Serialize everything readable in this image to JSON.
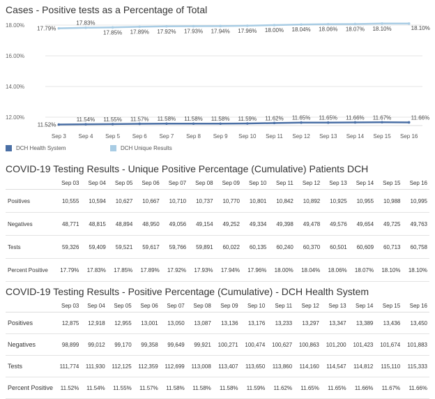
{
  "chart_title": "Cases - Positive tests as a Percentage of Total",
  "legend": [
    {
      "label": "DCH Health System",
      "color": "#4a6fa5"
    },
    {
      "label": "DCH Unique Results",
      "color": "#a8cce4"
    }
  ],
  "chart_data": {
    "type": "line",
    "title": "Cases - Positive tests as a Percentage of Total",
    "categories": [
      "Sep 3",
      "Sep 4",
      "Sep 5",
      "Sep 6",
      "Sep 7",
      "Sep 8",
      "Sep 9",
      "Sep 10",
      "Sep 11",
      "Sep 12",
      "Sep 13",
      "Sep 14",
      "Sep 15",
      "Sep 16"
    ],
    "y_ticks": [
      "18.00%",
      "16.00%",
      "14.00%",
      "12.00%"
    ],
    "ylim": [
      12.0,
      18.0
    ],
    "grid": true,
    "legend_position": "bottom-left",
    "series": [
      {
        "name": "DCH Health System",
        "color": "#4a6fa5",
        "values": [
          11.52,
          11.54,
          11.55,
          11.57,
          11.58,
          11.58,
          11.58,
          11.59,
          11.62,
          11.65,
          11.65,
          11.66,
          11.67,
          11.66
        ],
        "labels": [
          "11.52%",
          "11.54%",
          "11.55%",
          "11.57%",
          "11.58%",
          "11.58%",
          "11.58%",
          "11.59%",
          "11.62%",
          "11.65%",
          "11.65%",
          "11.66%",
          "11.67%",
          "11.66%"
        ]
      },
      {
        "name": "DCH Unique Results",
        "color": "#a8cce4",
        "values": [
          17.79,
          17.83,
          17.85,
          17.89,
          17.92,
          17.93,
          17.94,
          17.96,
          18.0,
          18.04,
          18.06,
          18.07,
          18.1,
          18.1
        ],
        "labels": [
          "17.79%",
          "17.83%",
          "17.85%",
          "17.89%",
          "17.92%",
          "17.93%",
          "17.94%",
          "17.96%",
          "18.00%",
          "18.04%",
          "18.06%",
          "18.07%",
          "18.10%",
          "18.10%"
        ]
      }
    ]
  },
  "table1": {
    "title": "COVID-19 Testing Results - Unique Positive Percentage (Cumulative) Patients DCH",
    "columns": [
      "Sep 03",
      "Sep 04",
      "Sep 05",
      "Sep 06",
      "Sep 07",
      "Sep 08",
      "Sep 09",
      "Sep 10",
      "Sep 11",
      "Sep 12",
      "Sep 13",
      "Sep 14",
      "Sep 15",
      "Sep 16"
    ],
    "rows": [
      {
        "label": "Positives",
        "values": [
          "10,555",
          "10,594",
          "10,627",
          "10,667",
          "10,710",
          "10,737",
          "10,770",
          "10,801",
          "10,842",
          "10,892",
          "10,925",
          "10,955",
          "10,988",
          "10,995"
        ]
      },
      {
        "label": "Negatives",
        "values": [
          "48,771",
          "48,815",
          "48,894",
          "48,950",
          "49,056",
          "49,154",
          "49,252",
          "49,334",
          "49,398",
          "49,478",
          "49,576",
          "49,654",
          "49,725",
          "49,763"
        ]
      },
      {
        "label": "Tests",
        "values": [
          "59,326",
          "59,409",
          "59,521",
          "59,617",
          "59,766",
          "59,891",
          "60,022",
          "60,135",
          "60,240",
          "60,370",
          "60,501",
          "60,609",
          "60,713",
          "60,758"
        ]
      },
      {
        "label": "Percent Positive",
        "values": [
          "17.79%",
          "17.83%",
          "17.85%",
          "17.89%",
          "17.92%",
          "17.93%",
          "17.94%",
          "17.96%",
          "18.00%",
          "18.04%",
          "18.06%",
          "18.07%",
          "18.10%",
          "18.10%"
        ]
      }
    ]
  },
  "table2": {
    "title": "COVID-19 Testing Results - Positive Percentage (Cumulative) - DCH Health System",
    "columns": [
      "Sep 03",
      "Sep 04",
      "Sep 05",
      "Sep 06",
      "Sep 07",
      "Sep 08",
      "Sep 09",
      "Sep 10",
      "Sep 11",
      "Sep 12",
      "Sep 13",
      "Sep 14",
      "Sep 15",
      "Sep 16"
    ],
    "rows": [
      {
        "label": "Positives",
        "values": [
          "12,875",
          "12,918",
          "12,955",
          "13,001",
          "13,050",
          "13,087",
          "13,136",
          "13,176",
          "13,233",
          "13,297",
          "13,347",
          "13,389",
          "13,436",
          "13,450"
        ]
      },
      {
        "label": "Negatives",
        "values": [
          "98,899",
          "99,012",
          "99,170",
          "99,358",
          "99,649",
          "99,921",
          "100,271",
          "100,474",
          "100,627",
          "100,863",
          "101,200",
          "101,423",
          "101,674",
          "101,883"
        ]
      },
      {
        "label": "Tests",
        "values": [
          "111,774",
          "111,930",
          "112,125",
          "112,359",
          "112,699",
          "113,008",
          "113,407",
          "113,650",
          "113,860",
          "114,160",
          "114,547",
          "114,812",
          "115,110",
          "115,333"
        ]
      },
      {
        "label": "Percent Positive",
        "values": [
          "11.52%",
          "11.54%",
          "11.55%",
          "11.57%",
          "11.58%",
          "11.58%",
          "11.58%",
          "11.59%",
          "11.62%",
          "11.65%",
          "11.65%",
          "11.66%",
          "11.67%",
          "11.66%"
        ]
      }
    ]
  }
}
